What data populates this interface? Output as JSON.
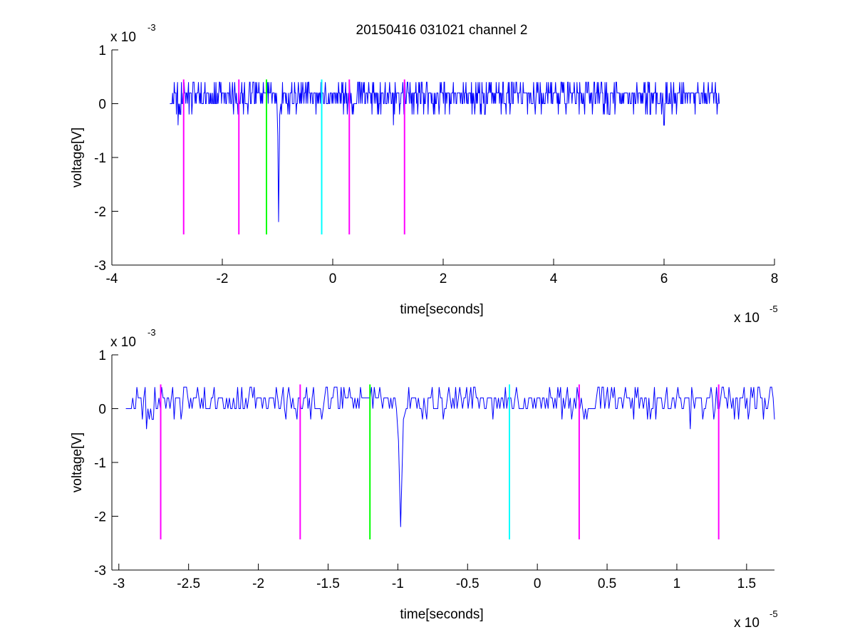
{
  "title": "20150416 031021 channel 2",
  "chart_data": [
    {
      "type": "line",
      "title": "20150416 031021 channel 2",
      "xlabel": "time[seconds]",
      "ylabel": "voltage[V]",
      "x_exponent_label": "x 10",
      "x_exponent": "-5",
      "y_exponent_label": "x 10",
      "y_exponent": "-3",
      "xlim": [
        -4,
        8
      ],
      "ylim": [
        -3,
        1
      ],
      "xticks": [
        -4,
        -2,
        0,
        2,
        4,
        6,
        8
      ],
      "xtick_labels": [
        "-4",
        "-2",
        "0",
        "2",
        "4",
        "6",
        "8"
      ],
      "yticks": [
        -3,
        -2,
        -1,
        0,
        1
      ],
      "ytick_labels": [
        "-3",
        "-2",
        "-1",
        "0",
        "1"
      ],
      "grid": false,
      "signal": {
        "color": "#0000ff",
        "x_start": -2.95,
        "x_end": 7.0,
        "baseline_levels": [
          0,
          0.2,
          0.4,
          -0.2
        ],
        "spike": {
          "x": -0.98,
          "ymin": -2.2
        },
        "dips": [
          {
            "x": -2.8,
            "y": -0.4
          },
          {
            "x": 6.0,
            "y": -0.4
          },
          {
            "x": 1.1,
            "y": -0.4
          }
        ]
      },
      "markers": [
        {
          "x": -2.7,
          "color": "#ff00ff"
        },
        {
          "x": -1.7,
          "color": "#ff00ff"
        },
        {
          "x": -1.2,
          "color": "#00ff00"
        },
        {
          "x": -0.2,
          "color": "#00ffff"
        },
        {
          "x": 0.3,
          "color": "#ff00ff"
        },
        {
          "x": 1.3,
          "color": "#ff00ff"
        }
      ],
      "marker_range": [
        -2.43,
        0.45
      ]
    },
    {
      "type": "line",
      "xlabel": "time[seconds]",
      "ylabel": "voltage[V]",
      "x_exponent_label": "x 10",
      "x_exponent": "-5",
      "y_exponent_label": "x 10",
      "y_exponent": "-3",
      "xlim": [
        -3.05,
        1.7
      ],
      "ylim": [
        -3,
        1
      ],
      "xticks": [
        -3,
        -2.5,
        -2,
        -1.5,
        -1,
        -0.5,
        0,
        0.5,
        1,
        1.5
      ],
      "xtick_labels": [
        "-3",
        "-2.5",
        "-2",
        "-1.5",
        "-1",
        "-0.5",
        "0",
        "0.5",
        "1",
        "1.5"
      ],
      "yticks": [
        -3,
        -2,
        -1,
        0,
        1
      ],
      "ytick_labels": [
        "-3",
        "-2",
        "-1",
        "0",
        "1"
      ],
      "grid": false,
      "signal": {
        "color": "#0000ff",
        "x_start": -2.95,
        "x_end": 1.7,
        "baseline_levels": [
          0,
          0.2,
          0.4,
          -0.2
        ],
        "spike": {
          "x": -0.98,
          "ymin": -2.2
        },
        "dips": [
          {
            "x": -2.8,
            "y": -0.38
          },
          {
            "x": 1.1,
            "y": -0.38
          }
        ]
      },
      "markers": [
        {
          "x": -2.7,
          "color": "#ff00ff"
        },
        {
          "x": -1.7,
          "color": "#ff00ff"
        },
        {
          "x": -1.2,
          "color": "#00ff00"
        },
        {
          "x": -0.2,
          "color": "#00ffff"
        },
        {
          "x": 0.3,
          "color": "#ff00ff"
        },
        {
          "x": 1.3,
          "color": "#ff00ff"
        }
      ],
      "marker_range": [
        -2.43,
        0.45
      ]
    }
  ]
}
